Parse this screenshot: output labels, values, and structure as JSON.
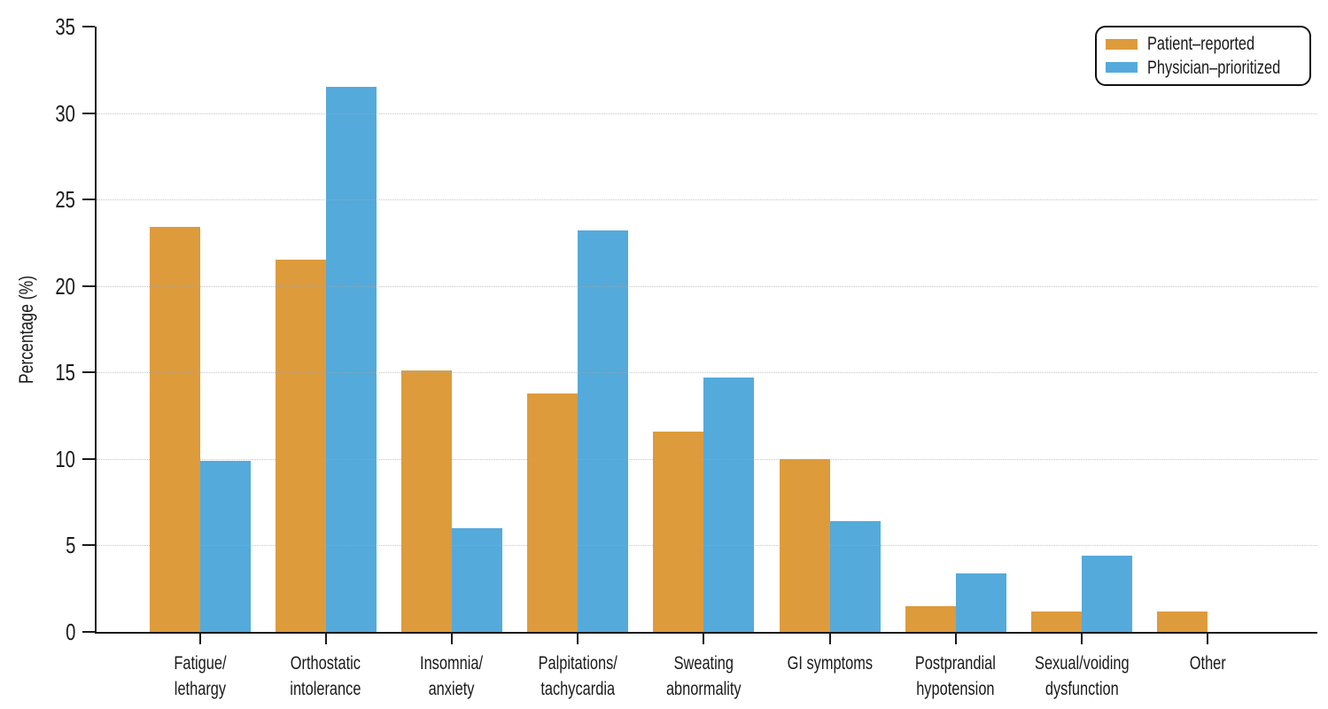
{
  "chart_data": {
    "type": "bar",
    "ylabel": "Percentage (%)",
    "xlabel": "",
    "ylim": [
      0,
      35
    ],
    "yticks": [
      0,
      5,
      10,
      15,
      20,
      25,
      30,
      35
    ],
    "gridline_values": [
      5,
      10,
      15,
      20,
      25,
      30
    ],
    "grid": "faint dotted horizontal lines",
    "legend_position": "top-right",
    "categories": [
      "Fatigue/\nlethargy",
      "Orthostatic\nintolerance",
      "Insomnia/\nanxiety",
      "Palpitations/\ntachycardia",
      "Sweating\nabnormality",
      "GI symptoms",
      "Postprandial\nhypotension",
      "Sexual/voiding\ndysfunction",
      "Other"
    ],
    "series": [
      {
        "name": "Patient–reported",
        "color": "#DD9B3C",
        "values": [
          23.4,
          21.5,
          15.1,
          13.8,
          11.6,
          10.0,
          1.5,
          1.2,
          1.2
        ]
      },
      {
        "name": "Physician–prioritized",
        "color": "#54AADB",
        "values": [
          9.9,
          31.5,
          6.0,
          23.2,
          14.7,
          6.4,
          3.4,
          4.4,
          0
        ]
      }
    ]
  },
  "colors": {
    "background": "#ffffff",
    "axis": "#1a1a1a",
    "text": "#1a1a1a",
    "gridline": "#a8a8a8",
    "patient_reported": "#DD9B3C",
    "physician_prioritized": "#54AADB"
  }
}
